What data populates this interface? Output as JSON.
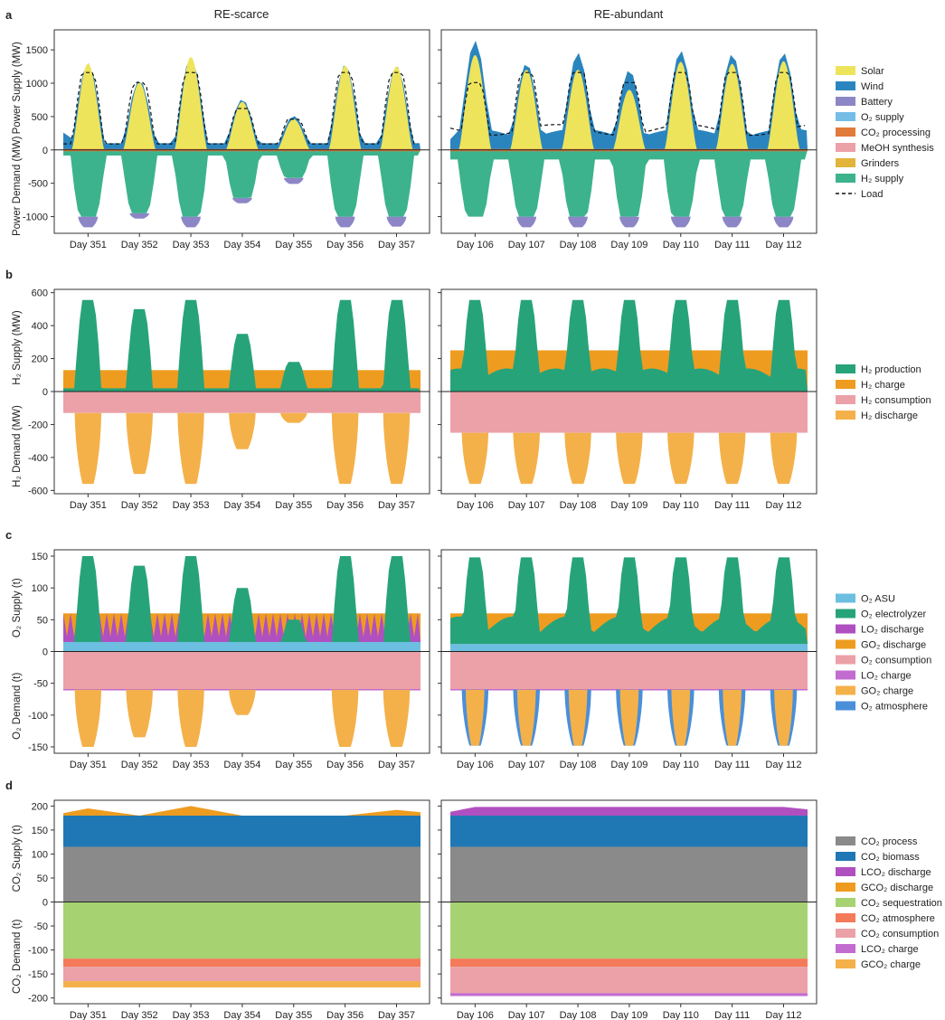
{
  "figure": {
    "column_titles": [
      "RE-scarce",
      "RE-abundant"
    ]
  },
  "chart_data": [
    {
      "panel": "a",
      "type": "area",
      "ylabel_top": "Power Supply (MW)",
      "ylabel_bottom": "Power Demand (MW)",
      "ylim": [
        -1250,
        1800
      ],
      "yticks": [
        -1000,
        -500,
        0,
        500,
        1000,
        1500
      ],
      "legend": [
        {
          "name": "Solar",
          "color": "#eee45b"
        },
        {
          "name": "Wind",
          "color": "#2a85bf"
        },
        {
          "name": "Battery",
          "color": "#8c86c6"
        },
        {
          "name": "O₂ supply",
          "color": "#74bde6"
        },
        {
          "name": "CO₂ processing",
          "color": "#e07b39"
        },
        {
          "name": "MeOH synthesis",
          "color": "#eba1a7"
        },
        {
          "name": "Grinders",
          "color": "#e3b43b"
        },
        {
          "name": "H₂ supply",
          "color": "#3cb38d"
        },
        {
          "name": "Load",
          "color": "#111111",
          "style": "dashed"
        }
      ],
      "columns": [
        {
          "days": [
            "Day 351",
            "Day 352",
            "Day 353",
            "Day 354",
            "Day 355",
            "Day 356",
            "Day 357"
          ],
          "peaks": [
            1300,
            1050,
            1390,
            760,
            510,
            1280,
            1260
          ],
          "supply": {
            "solar_peak": [
              1290,
              1010,
              1390,
              720,
              460,
              1260,
              1250
            ],
            "wind_base": 80,
            "wind_start": 260,
            "battery_peak": 0
          },
          "load_peak": [
            1160,
            1010,
            1160,
            620,
            460,
            1160,
            1160
          ],
          "demand": {
            "h2_peak": [
              -1000,
              -950,
              -1000,
              -720,
              -420,
              -1000,
              -1000
            ],
            "battery_dip": [
              -1160,
              -1030,
              -1160,
              -800,
              -510,
              -1160,
              -1150
            ],
            "base": -70
          }
        },
        {
          "days": [
            "Day 106",
            "Day 107",
            "Day 108",
            "Day 109",
            "Day 110",
            "Day 111",
            "Day 112"
          ],
          "peaks": [
            1640,
            1300,
            1460,
            1200,
            1490,
            1440,
            1460
          ],
          "supply": {
            "solar_peak": [
              1420,
              1200,
              1200,
              900,
              1320,
              1290,
              1330
            ],
            "wind_base": 140,
            "wind_start": 160,
            "battery_peak": 0
          },
          "load_peak": [
            1010,
            1160,
            1160,
            1010,
            1160,
            1160,
            1160
          ],
          "demand": {
            "h2_peak": [
              -1000,
              -1000,
              -1000,
              -1000,
              -1000,
              -1000,
              -1000
            ],
            "battery_dip": [
              -1000,
              -1160,
              -1160,
              -1160,
              -1160,
              -1160,
              -1160
            ],
            "base": -90
          }
        }
      ]
    },
    {
      "panel": "b",
      "type": "area",
      "ylabel_top": "H₂ Supply (MW)",
      "ylabel_bottom": "H₂ Demand (MW)",
      "ylim": [
        -620,
        620
      ],
      "yticks": [
        -600,
        -400,
        -200,
        0,
        200,
        400,
        600
      ],
      "legend": [
        {
          "name": "H₂ production",
          "color": "#27a37a"
        },
        {
          "name": "H₂ charge",
          "color": "#ee9c20"
        },
        {
          "name": "H₂ consumption",
          "color": "#eba1a7"
        },
        {
          "name": "H₂ discharge",
          "color": "#f4b14a"
        }
      ],
      "columns": [
        {
          "days": [
            "Day 351",
            "Day 352",
            "Day 353",
            "Day 354",
            "Day 355",
            "Day 356",
            "Day 357"
          ],
          "production_peak": [
            555,
            500,
            555,
            350,
            180,
            555,
            555
          ],
          "charge_level": [
            130,
            130,
            130,
            130,
            130,
            130,
            130
          ],
          "consumption": -130,
          "discharge_peak": [
            -560,
            -500,
            -560,
            -350,
            -190,
            -560,
            -560
          ]
        },
        {
          "days": [
            "Day 106",
            "Day 107",
            "Day 108",
            "Day 109",
            "Day 110",
            "Day 111",
            "Day 112"
          ],
          "production_peak": [
            555,
            555,
            555,
            555,
            555,
            555,
            555
          ],
          "charge_level": [
            250,
            250,
            250,
            250,
            250,
            250,
            250
          ],
          "consumption": -250,
          "discharge_peak": [
            -560,
            -560,
            -560,
            -560,
            -560,
            -560,
            -560
          ]
        }
      ]
    },
    {
      "panel": "c",
      "type": "area",
      "ylabel_top": "O₂ Supply (t)",
      "ylabel_bottom": "O₂ Demand (t)",
      "ylim": [
        -160,
        160
      ],
      "yticks": [
        -150,
        -100,
        -50,
        0,
        50,
        100,
        150
      ],
      "legend": [
        {
          "name": "O₂ ASU",
          "color": "#6cbfe0"
        },
        {
          "name": "O₂ electrolyzer",
          "color": "#27a37a"
        },
        {
          "name": "LO₂ discharge",
          "color": "#b04fc0"
        },
        {
          "name": "GO₂ discharge",
          "color": "#ee9c20"
        },
        {
          "name": "O₂ consumption",
          "color": "#eba1a7"
        },
        {
          "name": "LO₂ charge",
          "color": "#c26bd1"
        },
        {
          "name": "GO₂ charge",
          "color": "#f4b14a"
        },
        {
          "name": "O₂ atmosphere",
          "color": "#4a8fd9"
        }
      ],
      "columns": [
        {
          "days": [
            "Day 351",
            "Day 352",
            "Day 353",
            "Day 354",
            "Day 355",
            "Day 356",
            "Day 357"
          ],
          "electrolyzer_peak": [
            150,
            135,
            150,
            100,
            50,
            150,
            150
          ],
          "asu": 15,
          "discharge_level": 60,
          "consumption": -60,
          "charge_peak": [
            -150,
            -135,
            -150,
            -100,
            -60,
            -150,
            -150
          ]
        },
        {
          "days": [
            "Day 106",
            "Day 107",
            "Day 108",
            "Day 109",
            "Day 110",
            "Day 111",
            "Day 112"
          ],
          "electrolyzer_peak": [
            148,
            148,
            148,
            148,
            148,
            148,
            148
          ],
          "asu": 12,
          "discharge_level": 60,
          "consumption": -60,
          "charge_peak": [
            -148,
            -148,
            -148,
            -148,
            -148,
            -148,
            -148
          ]
        }
      ]
    },
    {
      "panel": "d",
      "type": "area",
      "ylabel_top": "CO₂ Supply (t)",
      "ylabel_bottom": "CO₂ Demand (t)",
      "ylim": [
        -212,
        212
      ],
      "yticks": [
        -200,
        -150,
        -100,
        -50,
        0,
        50,
        100,
        150,
        200
      ],
      "legend": [
        {
          "name": "CO₂ process",
          "color": "#8a8a8a"
        },
        {
          "name": "CO₂ biomass",
          "color": "#1f78b4"
        },
        {
          "name": "LCO₂ discharge",
          "color": "#b04fc0"
        },
        {
          "name": "GCO₂ discharge",
          "color": "#ee9c20"
        },
        {
          "name": "CO₂ sequestration",
          "color": "#a6d272"
        },
        {
          "name": "CO₂ atmosphere",
          "color": "#f47a5a"
        },
        {
          "name": "CO₂ consumption",
          "color": "#eba1a7"
        },
        {
          "name": "LCO₂ charge",
          "color": "#c26bd1"
        },
        {
          "name": "GCO₂ charge",
          "color": "#f4b14a"
        }
      ],
      "columns": [
        {
          "days": [
            "Day 351",
            "Day 352",
            "Day 353",
            "Day 354",
            "Day 355",
            "Day 356",
            "Day 357"
          ],
          "process": 115,
          "biomass": 180,
          "top_extra": [
            195,
            180,
            200,
            180,
            180,
            180,
            192
          ],
          "sequestration": -118,
          "atmosphere": -135,
          "consumption": -165,
          "charge": -178
        },
        {
          "days": [
            "Day 106",
            "Day 107",
            "Day 108",
            "Day 109",
            "Day 110",
            "Day 111",
            "Day 112"
          ],
          "process": 115,
          "biomass": 180,
          "top_extra": [
            198,
            198,
            198,
            198,
            198,
            198,
            198
          ],
          "sequestration": -118,
          "atmosphere": -135,
          "consumption": -190,
          "charge": -196
        }
      ]
    }
  ],
  "panel_labels": [
    "a",
    "b",
    "c",
    "d"
  ]
}
